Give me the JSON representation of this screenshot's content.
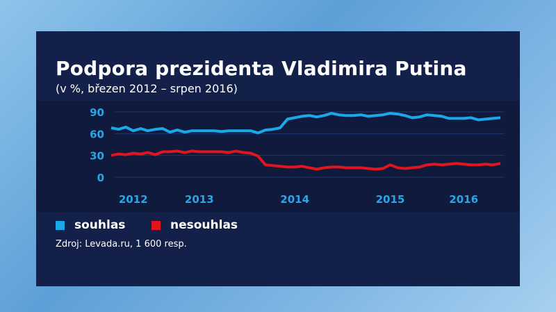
{
  "title": "Podpora prezidenta Vladimira Putina",
  "subtitle": "(v %, březen 2012 – srpen 2016)",
  "source": "Zdroj: Levada.ru, 1 600 resp.",
  "legend": [
    {
      "label": "souhlas",
      "color": "#1aa8e8"
    },
    {
      "label": "nesouhlas",
      "color": "#e0151d"
    }
  ],
  "chart_data": {
    "type": "line",
    "title": "Podpora prezidenta Vladimira Putina",
    "subtitle": "(v %, březen 2012 – srpen 2016)",
    "x_start": "2012-03",
    "x_end": "2016-08",
    "x_step": "month",
    "ylim": [
      0,
      90
    ],
    "yticks": [
      0,
      30,
      60,
      90
    ],
    "grid": true,
    "legend_position": "bottom-left",
    "xtick_labels": [
      {
        "label": "2012",
        "at": "2012-06"
      },
      {
        "label": "2013",
        "at": "2013-03"
      },
      {
        "label": "2014",
        "at": "2014-04"
      },
      {
        "label": "2015",
        "at": "2015-05"
      },
      {
        "label": "2016",
        "at": "2016-03"
      }
    ],
    "series": [
      {
        "name": "souhlas",
        "color": "#1aa8e8",
        "values": [
          68,
          66,
          69,
          64,
          67,
          64,
          66,
          67,
          62,
          65,
          62,
          64,
          64,
          64,
          64,
          63,
          64,
          64,
          64,
          64,
          61,
          65,
          66,
          68,
          80,
          82,
          84,
          85,
          83,
          85,
          88,
          86,
          85,
          85,
          86,
          84,
          85,
          86,
          88,
          87,
          85,
          82,
          83,
          86,
          85,
          84,
          81,
          81,
          81,
          82,
          79,
          80,
          81,
          82
        ]
      },
      {
        "name": "nesouhlas",
        "color": "#e0151d",
        "values": [
          30,
          32,
          31,
          33,
          32,
          34,
          31,
          35,
          35,
          36,
          34,
          36,
          35,
          35,
          35,
          35,
          34,
          36,
          34,
          33,
          29,
          17,
          16,
          15,
          14,
          14,
          15,
          13,
          11,
          13,
          14,
          14,
          13,
          13,
          13,
          12,
          11,
          12,
          17,
          13,
          12,
          13,
          14,
          17,
          18,
          17,
          18,
          19,
          18,
          17,
          17,
          18,
          17,
          19
        ]
      }
    ]
  }
}
